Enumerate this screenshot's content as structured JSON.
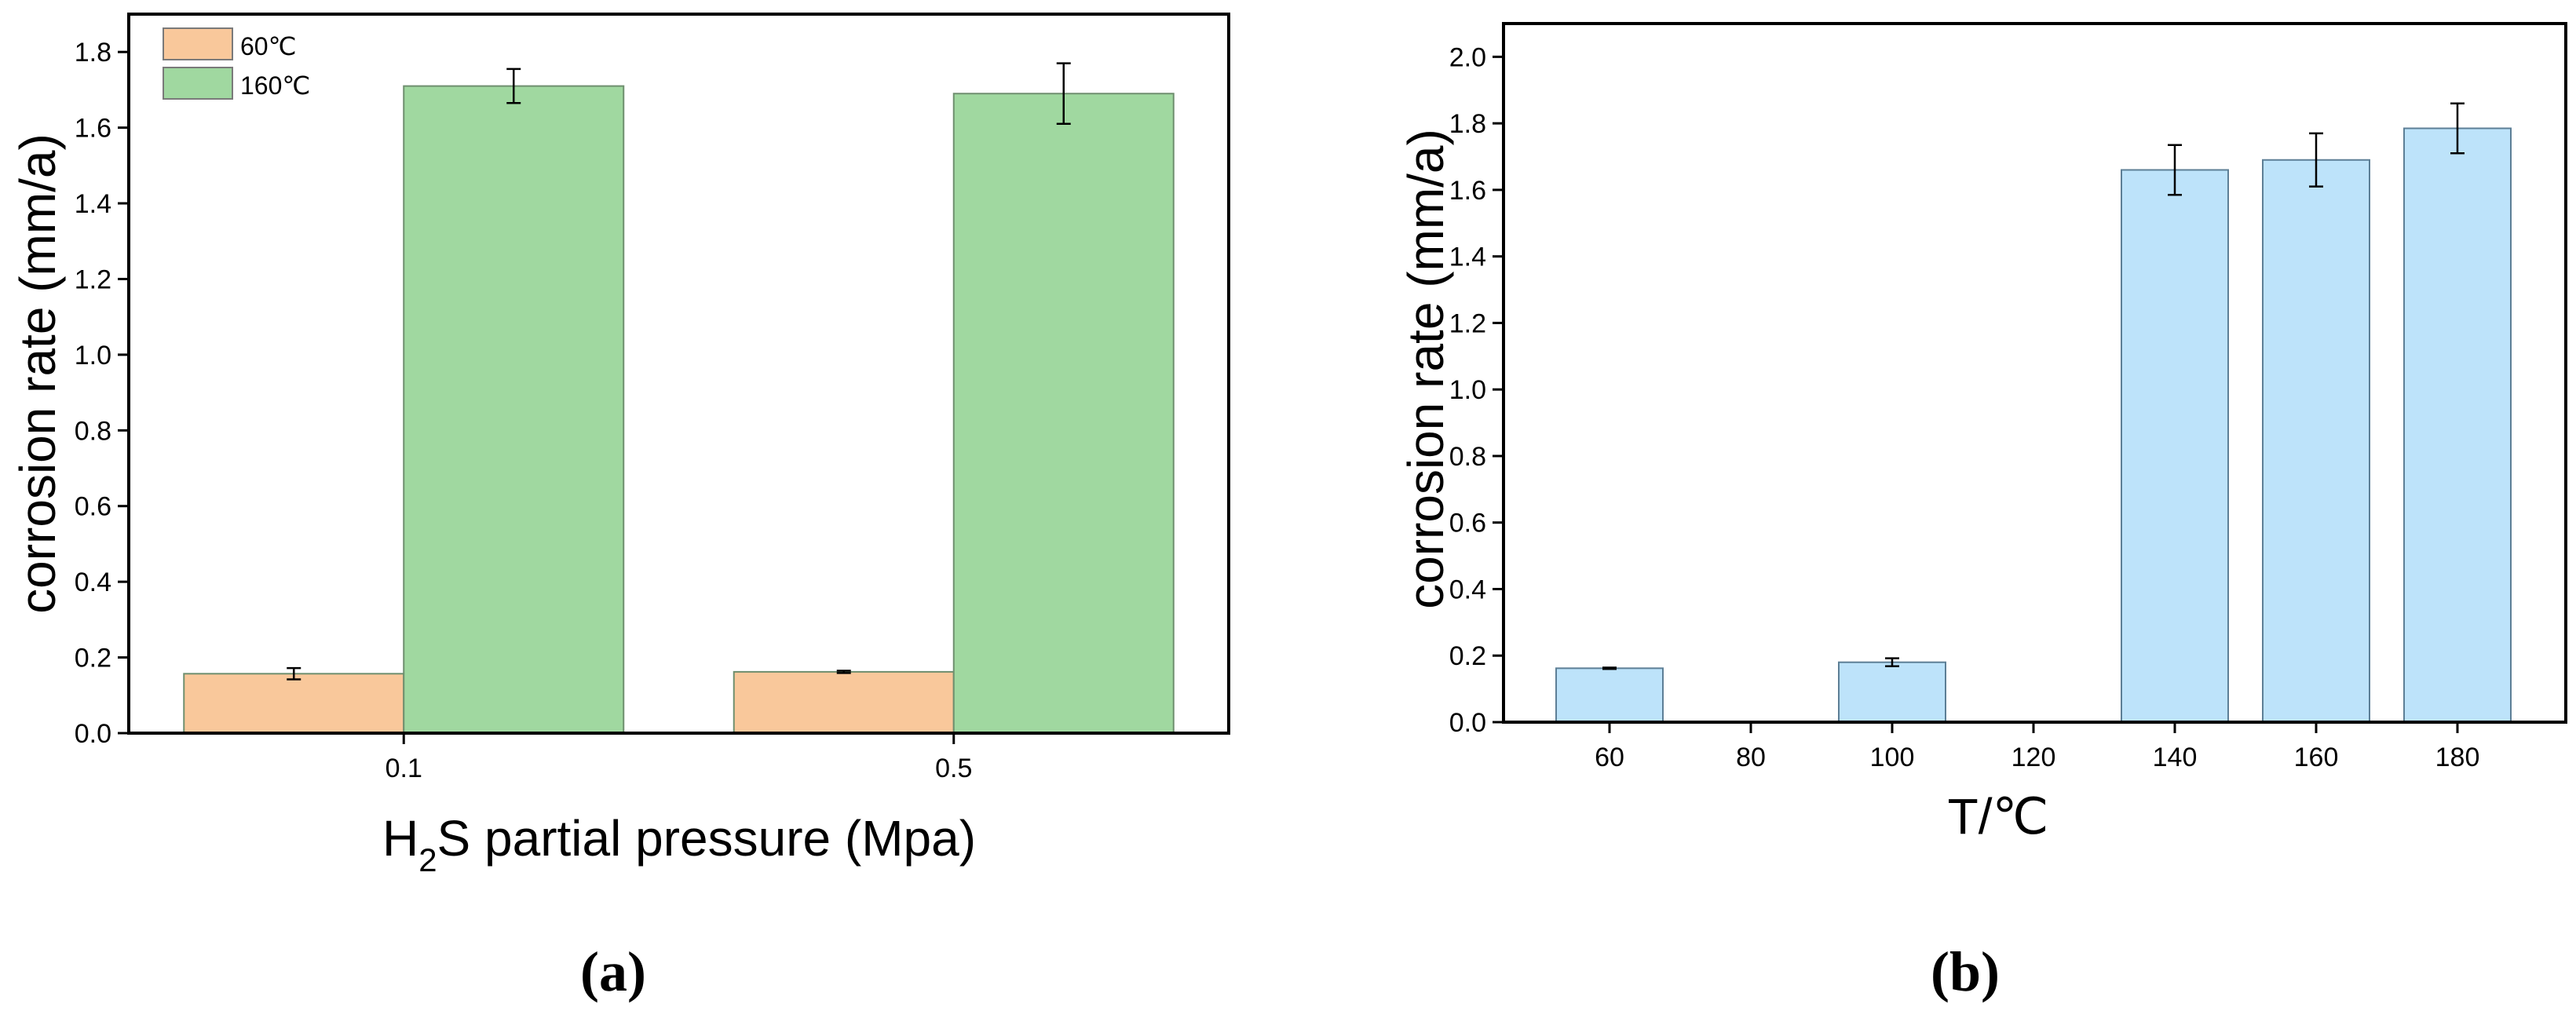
{
  "figure": {
    "panel_a_label": "(a)",
    "panel_b_label": "(b)"
  },
  "chart_data": [
    {
      "type": "bar",
      "panel": "a",
      "xlabel_main": "H",
      "xlabel_sub": "2",
      "xlabel_rest": "S partial pressure (Mpa)",
      "ylabel": "corrosion rate (mm/a)",
      "categories": [
        "0.1",
        "0.5"
      ],
      "series": [
        {
          "name": "60℃",
          "values": [
            0.157,
            0.162
          ],
          "errors": [
            0.015,
            0.003
          ],
          "color": "#f9c89b"
        },
        {
          "name": "160℃",
          "values": [
            1.71,
            1.69
          ],
          "errors": [
            0.045,
            0.08
          ],
          "color": "#a0d8a0"
        }
      ],
      "ylim": [
        0,
        1.9
      ],
      "yticks": [
        0.0,
        0.2,
        0.4,
        0.6,
        0.8,
        1.0,
        1.2,
        1.4,
        1.6,
        1.8
      ],
      "ytick_labels": [
        "0.0",
        "0.2",
        "0.4",
        "0.6",
        "0.8",
        "1.0",
        "1.2",
        "1.4",
        "1.6",
        "1.8"
      ],
      "legend_position": "top-left",
      "grid": false
    },
    {
      "type": "bar",
      "panel": "b",
      "xlabel": "T/℃",
      "ylabel": "corrosion rate (mm/a)",
      "categories": [
        "60",
        "80",
        "100",
        "120",
        "140",
        "160",
        "180"
      ],
      "values": [
        0.162,
        null,
        0.18,
        null,
        1.66,
        1.69,
        1.785
      ],
      "errors": [
        0.002,
        null,
        0.012,
        null,
        0.075,
        0.08,
        0.075
      ],
      "color": "#bde3fa",
      "ylim": [
        0,
        2.1
      ],
      "yticks": [
        0.0,
        0.2,
        0.4,
        0.6,
        0.8,
        1.0,
        1.2,
        1.4,
        1.6,
        1.8,
        2.0
      ],
      "ytick_labels": [
        "0.0",
        "0.2",
        "0.4",
        "0.6",
        "0.8",
        "1.0",
        "1.2",
        "1.4",
        "1.6",
        "1.8",
        "2.0"
      ],
      "grid": false
    }
  ]
}
